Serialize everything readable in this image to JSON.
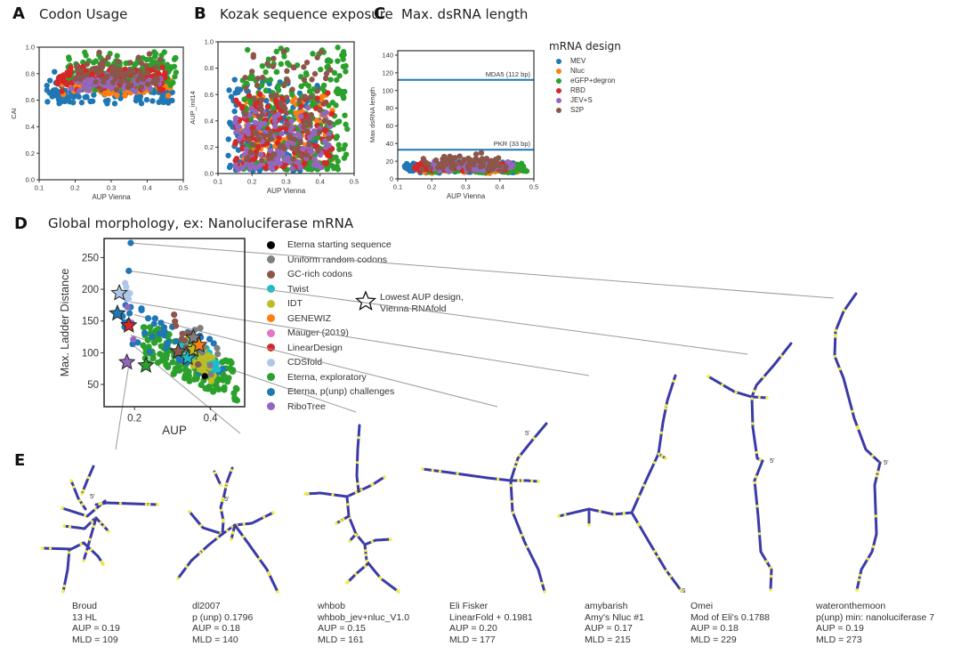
{
  "panels": {
    "A": {
      "letter": "A",
      "title": "Codon Usage"
    },
    "B": {
      "letter": "B",
      "title": "Kozak sequence exposure"
    },
    "C": {
      "letter": "C",
      "title": "Max. dsRNA length"
    },
    "D": {
      "letter": "D",
      "title": "Global morphology, ex: Nanoluciferase mRNA"
    },
    "E": {
      "letter": "E"
    }
  },
  "legend_top": {
    "title": "mRNA design",
    "items": [
      {
        "label": "MEV",
        "color": "#1f77b4"
      },
      {
        "label": "Nluc",
        "color": "#ff7f0e"
      },
      {
        "label": "eGFP+degron",
        "color": "#2ca02c"
      },
      {
        "label": "RBD",
        "color": "#d62728"
      },
      {
        "label": "JEV+S",
        "color": "#9467bd"
      },
      {
        "label": "S2P",
        "color": "#8c564b"
      }
    ]
  },
  "legend_D": {
    "items": [
      {
        "label": "Eterna starting sequence",
        "color": "#000000"
      },
      {
        "label": "Uniform random codons",
        "color": "#7f7f7f"
      },
      {
        "label": "GC-rich codons",
        "color": "#8c564b"
      },
      {
        "label": "Twist",
        "color": "#17becf"
      },
      {
        "label": "IDT",
        "color": "#bcbd22"
      },
      {
        "label": "GENEWIZ",
        "color": "#ff7f0e"
      },
      {
        "label": "Mauger (2019)",
        "color": "#e377c2"
      },
      {
        "label": "LinearDesign",
        "color": "#d62728"
      },
      {
        "label": "CDSfold",
        "color": "#aec7e8"
      },
      {
        "label": "Eterna, exploratory",
        "color": "#2ca02c"
      },
      {
        "label": "Eterna, p(unp) challenges",
        "color": "#1f77b4"
      },
      {
        "label": "RiboTree",
        "color": "#9467bd"
      }
    ],
    "star_note_line1": "Lowest AUP design,",
    "star_note_line2": "Vienna RNAfold"
  },
  "chart_data": [
    {
      "id": "A",
      "type": "scatter",
      "title": "Codon Usage",
      "xlabel": "AUP Vienna",
      "ylabel": "CAI",
      "xlim": [
        0.1,
        0.5
      ],
      "ylim": [
        0.0,
        1.0
      ],
      "xticks": [
        "0.1",
        "0.2",
        "0.3",
        "0.4",
        "0.5"
      ],
      "yticks": [
        "0.0",
        "0.2",
        "0.4",
        "0.6",
        "0.8",
        "1.0"
      ],
      "series": [
        {
          "name": "MEV",
          "x_range": [
            0.12,
            0.47
          ],
          "y_range": [
            0.55,
            0.82
          ],
          "n": 160
        },
        {
          "name": "Nluc",
          "x_range": [
            0.15,
            0.47
          ],
          "y_range": [
            0.62,
            0.78
          ],
          "n": 90
        },
        {
          "name": "eGFP+degron",
          "x_range": [
            0.18,
            0.48
          ],
          "y_range": [
            0.66,
            0.97
          ],
          "n": 180
        },
        {
          "name": "RBD",
          "x_range": [
            0.15,
            0.45
          ],
          "y_range": [
            0.66,
            0.86
          ],
          "n": 130
        },
        {
          "name": "JEV+S",
          "x_range": [
            0.18,
            0.44
          ],
          "y_range": [
            0.66,
            0.8
          ],
          "n": 70
        },
        {
          "name": "S2P",
          "x_range": [
            0.2,
            0.44
          ],
          "y_range": [
            0.66,
            0.98
          ],
          "n": 70
        }
      ]
    },
    {
      "id": "B",
      "type": "scatter",
      "title": "Kozak sequence exposure",
      "xlabel": "AUP Vienna",
      "ylabel": "AUP_init14",
      "xlim": [
        0.1,
        0.5
      ],
      "ylim": [
        0.0,
        1.0
      ],
      "xticks": [
        "0.1",
        "0.2",
        "0.3",
        "0.4",
        "0.5"
      ],
      "yticks": [
        "0.0",
        "0.2",
        "0.4",
        "0.6",
        "0.8",
        "1.0"
      ],
      "series": [
        {
          "name": "MEV",
          "x_range": [
            0.13,
            0.4
          ],
          "y_range": [
            0.02,
            0.72
          ],
          "n": 160
        },
        {
          "name": "Nluc",
          "x_range": [
            0.15,
            0.44
          ],
          "y_range": [
            0.05,
            0.6
          ],
          "n": 130
        },
        {
          "name": "eGFP+degron",
          "x_range": [
            0.17,
            0.48
          ],
          "y_range": [
            0.03,
            0.96
          ],
          "n": 260
        },
        {
          "name": "RBD",
          "x_range": [
            0.15,
            0.44
          ],
          "y_range": [
            0.04,
            0.62
          ],
          "n": 150
        },
        {
          "name": "JEV+S",
          "x_range": [
            0.15,
            0.43
          ],
          "y_range": [
            0.03,
            0.5
          ],
          "n": 120
        },
        {
          "name": "S2P",
          "x_range": [
            0.17,
            0.43
          ],
          "y_range": [
            0.1,
            0.94
          ],
          "n": 100
        }
      ]
    },
    {
      "id": "C",
      "type": "scatter",
      "title": "Max. dsRNA length",
      "xlabel": "AUP Vienna",
      "ylabel": "Max dsRNA length",
      "xlim": [
        0.1,
        0.5
      ],
      "ylim": [
        0,
        145
      ],
      "xticks": [
        "0.1",
        "0.2",
        "0.3",
        "0.4",
        "0.5"
      ],
      "yticks": [
        "0",
        "20",
        "40",
        "60",
        "80",
        "100",
        "120",
        "140"
      ],
      "reference_lines": [
        {
          "label": "MDA5 (112 bp)",
          "y": 112,
          "color": "#1f77b4"
        },
        {
          "label": "PKR (33 bp)",
          "y": 33,
          "color": "#1f77b4"
        }
      ],
      "series": [
        {
          "name": "MEV",
          "x_range": [
            0.12,
            0.45
          ],
          "y_range": [
            6,
            20
          ],
          "n": 160
        },
        {
          "name": "Nluc",
          "x_range": [
            0.15,
            0.47
          ],
          "y_range": [
            6,
            16
          ],
          "n": 90
        },
        {
          "name": "eGFP+degron",
          "x_range": [
            0.18,
            0.48
          ],
          "y_range": [
            6,
            18
          ],
          "n": 160
        },
        {
          "name": "RBD",
          "x_range": [
            0.15,
            0.44
          ],
          "y_range": [
            8,
            20
          ],
          "n": 110
        },
        {
          "name": "JEV+S",
          "x_range": [
            0.18,
            0.44
          ],
          "y_range": [
            8,
            20
          ],
          "n": 70
        },
        {
          "name": "S2P",
          "x_range": [
            0.17,
            0.42
          ],
          "y_range": [
            8,
            30
          ],
          "n": 70
        }
      ]
    },
    {
      "id": "D",
      "type": "scatter",
      "title": "Global morphology, ex: Nanoluciferase mRNA",
      "xlabel": "AUP",
      "ylabel": "Max. Ladder Distance",
      "xlim": [
        0.12,
        0.49
      ],
      "ylim": [
        15,
        280
      ],
      "xticks": [
        "0.2",
        "0.4"
      ],
      "ytick_values": [
        50,
        100,
        150,
        200,
        250
      ],
      "yticks": [
        "50",
        "100",
        "150",
        "200",
        "250"
      ],
      "series": [
        {
          "name": "Eterna, exploratory",
          "x_range": [
            0.22,
            0.47
          ],
          "y_range": [
            25,
            140
          ],
          "n": 170
        },
        {
          "name": "Eterna, p(unp) challenges",
          "x_range": [
            0.16,
            0.44
          ],
          "y_range": [
            55,
            175
          ],
          "n": 60
        },
        {
          "name": "Twist",
          "x_range": [
            0.32,
            0.42
          ],
          "y_range": [
            65,
            135
          ],
          "n": 35
        },
        {
          "name": "IDT",
          "x_range": [
            0.33,
            0.41
          ],
          "y_range": [
            50,
            130
          ],
          "n": 35
        },
        {
          "name": "GC-rich codons",
          "x_range": [
            0.3,
            0.37
          ],
          "y_range": [
            80,
            160
          ],
          "n": 12
        },
        {
          "name": "Uniform random codons",
          "x_range": [
            0.33,
            0.42
          ],
          "y_range": [
            45,
            170
          ],
          "n": 8
        },
        {
          "name": "RiboTree",
          "x_range": [
            0.18,
            0.2
          ],
          "y_range": [
            115,
            200
          ],
          "n": 5
        },
        {
          "name": "CDSfold",
          "x_range": [
            0.17,
            0.19
          ],
          "y_range": [
            170,
            215
          ],
          "n": 6
        }
      ],
      "extra_points": [
        {
          "series": "Eterna, p(unp) challenges",
          "x": 0.19,
          "y": 273
        },
        {
          "series": "Eterna, p(unp) challenges",
          "x": 0.185,
          "y": 229
        },
        {
          "series": "Eterna starting sequence",
          "x": 0.385,
          "y": 63
        }
      ],
      "stars": [
        {
          "series": "CDSfold",
          "x": 0.16,
          "y": 194
        },
        {
          "series": "Eterna, p(unp) challenges",
          "x": 0.155,
          "y": 162
        },
        {
          "series": "LinearDesign",
          "x": 0.185,
          "y": 143
        },
        {
          "series": "RiboTree",
          "x": 0.18,
          "y": 85
        },
        {
          "series": "Eterna, exploratory",
          "x": 0.23,
          "y": 80
        },
        {
          "series": "GC-rich codons",
          "x": 0.315,
          "y": 102
        },
        {
          "series": "Twist",
          "x": 0.34,
          "y": 92
        },
        {
          "series": "IDT",
          "x": 0.355,
          "y": 105
        },
        {
          "series": "Uniform random codons",
          "x": 0.355,
          "y": 124
        },
        {
          "series": "GENEWIZ",
          "x": 0.37,
          "y": 112
        }
      ],
      "leaders": [
        {
          "to": "wateronthemoon",
          "x": 0.19,
          "y": 273
        },
        {
          "to": "Omei",
          "x": 0.185,
          "y": 229
        },
        {
          "to": "amybarish",
          "x": 0.19,
          "y": 180
        },
        {
          "to": "Eli Fisker",
          "x": 0.2,
          "y": 160
        },
        {
          "to": "whbob",
          "x": 0.19,
          "y": 128
        },
        {
          "to": "dl2007",
          "x": 0.2,
          "y": 110
        },
        {
          "to": "Broud",
          "x": 0.185,
          "y": 80
        }
      ]
    }
  ],
  "designs": [
    {
      "author": "Broud",
      "name": "13 HL",
      "aup": "AUP = 0.19",
      "mld": "MLD = 109"
    },
    {
      "author": "dl2007",
      "name": "p (unp) 0.1796",
      "aup": "AUP = 0.18",
      "mld": "MLD = 140"
    },
    {
      "author": "whbob",
      "name": "whbob_jev+nluc_V1.0",
      "aup": "AUP = 0.15",
      "mld": "MLD = 161"
    },
    {
      "author": "Eli Fisker",
      "name": "LinearFold + 0.1981",
      "aup": "AUP = 0.20",
      "mld": "MLD = 177"
    },
    {
      "author": "amybarish",
      "name": "Amy's Nluc #1",
      "aup": "AUP = 0.17",
      "mld": "MLD = 215"
    },
    {
      "author": "Omei",
      "name": "Mod of Eli's 0.1788",
      "aup": "AUP = 0.18",
      "mld": "MLD = 229"
    },
    {
      "author": "wateronthemoon",
      "name": "p(unp) min: nanoluciferase 7",
      "aup": "AUP = 0.19",
      "mld": "MLD = 273"
    }
  ],
  "five_prime_label": "5'",
  "structure_colors": {
    "stem": "#3a3aa8",
    "loop": "#f2ef3a"
  }
}
